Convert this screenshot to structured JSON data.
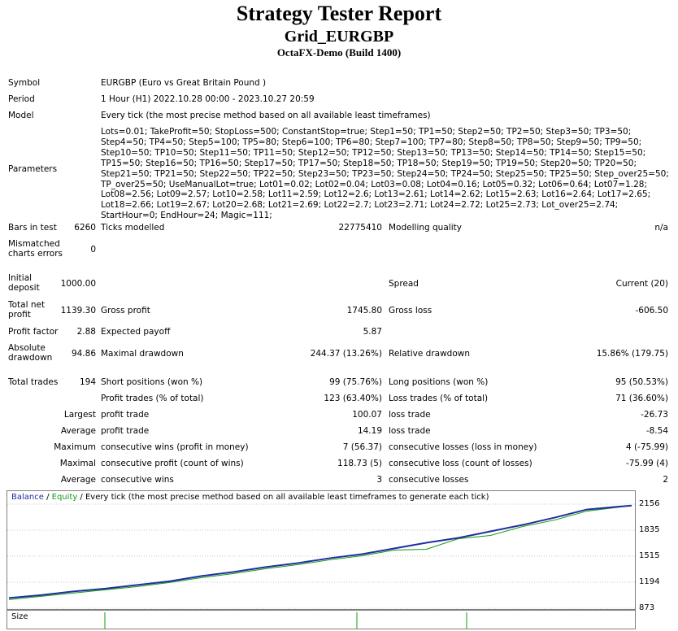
{
  "header": {
    "title": "Strategy Tester Report",
    "expert": "Grid_EURGBP",
    "server": "OctaFX-Demo (Build 1400)"
  },
  "info": {
    "symbol_label": "Symbol",
    "symbol_value": "EURGBP (Euro vs Great Britain Pound )",
    "period_label": "Period",
    "period_value": "1 Hour (H1) 2022.10.28 00:00 - 2023.10.27 20:59",
    "model_label": "Model",
    "model_value": "Every tick (the most precise method based on all available least timeframes)",
    "parameters_label": "Parameters",
    "parameters_value": "Lots=0.01; TakeProfit=50; StopLoss=500; ConstantStop=true; Step1=50; TP1=50; Step2=50; TP2=50; Step3=50; TP3=50; Step4=50; TP4=50; Step5=100; TP5=80; Step6=100; TP6=80; Step7=100; TP7=80; Step8=50; TP8=50; Step9=50; TP9=50; Step10=50; TP10=50; Step11=50; TP11=50; Step12=50; TP12=50; Step13=50; TP13=50; Step14=50; TP14=50; Step15=50; TP15=50; Step16=50; TP16=50; Step17=50; TP17=50; Step18=50; TP18=50; Step19=50; TP19=50; Step20=50; TP20=50; Step21=50; TP21=50; Step22=50; TP22=50; Step23=50; TP23=50; Step24=50; TP24=50; Step25=50; TP25=50; Step_over25=50; TP_over25=50; UseManualLot=true; Lot01=0.02; Lot02=0.04; Lot03=0.08; Lot04=0.16; Lot05=0.32; Lot06=0.64; Lot07=1.28; Lot08=2.56; Lot09=2.57; Lot10=2.58; Lot11=2.59; Lot12=2.6; Lot13=2.61; Lot14=2.62; Lot15=2.63; Lot16=2.64; Lot17=2.65; Lot18=2.66; Lot19=2.67; Lot20=2.68; Lot21=2.69; Lot22=2.7; Lot23=2.71; Lot24=2.72; Lot25=2.73; Lot_over25=2.74; StartHour=0; EndHour=24; Magic=111;"
  },
  "stats": {
    "bars_label": "Bars in test",
    "bars_value": "6260",
    "ticks_label": "Ticks modelled",
    "ticks_value": "22775410",
    "quality_label": "Modelling quality",
    "quality_value": "n/a",
    "mismatch_label": "Mismatched charts errors",
    "mismatch_value": "0",
    "deposit_label": "Initial deposit",
    "deposit_value": "1000.00",
    "spread_label": "Spread",
    "spread_value": "Current (20)",
    "net_label": "Total net profit",
    "net_value": "1139.30",
    "gross_profit_label": "Gross profit",
    "gross_profit_value": "1745.80",
    "gross_loss_label": "Gross loss",
    "gross_loss_value": "-606.50",
    "pf_label": "Profit factor",
    "pf_value": "2.88",
    "payoff_label": "Expected payoff",
    "payoff_value": "5.87",
    "abs_dd_label": "Absolute drawdown",
    "abs_dd_value": "94.86",
    "max_dd_label": "Maximal drawdown",
    "max_dd_value": "244.37 (13.26%)",
    "rel_dd_label": "Relative drawdown",
    "rel_dd_value": "15.86% (179.75)",
    "trades_label": "Total trades",
    "trades_value": "194",
    "short_label": "Short positions (won %)",
    "short_value": "99 (75.76%)",
    "long_label": "Long positions (won %)",
    "long_value": "95 (50.53%)",
    "ptrades_label": "Profit trades (% of total)",
    "ptrades_value": "123 (63.40%)",
    "ltrades_label": "Loss trades (% of total)",
    "ltrades_value": "71 (36.60%)",
    "largest_label": "Largest",
    "largest_profit_label": "profit trade",
    "largest_profit_value": "100.07",
    "largest_loss_label": "loss trade",
    "largest_loss_value": "-26.73",
    "average_label": "Average",
    "avg_profit_label": "profit trade",
    "avg_profit_value": "14.19",
    "avg_loss_label": "loss trade",
    "avg_loss_value": "-8.54",
    "maximum_label": "Maximum",
    "max_wins_label": "consecutive wins (profit in money)",
    "max_wins_value": "7 (56.37)",
    "max_losses_label": "consecutive losses (loss in money)",
    "max_losses_value": "4 (-75.99)",
    "maximal_label": "Maximal",
    "maximal_profit_label": "consecutive profit (count of wins)",
    "maximal_profit_value": "118.73 (5)",
    "maximal_loss_label": "consecutive loss (count of losses)",
    "maximal_loss_value": "-75.99 (4)",
    "average2_label": "Average",
    "avg_wins_label": "consecutive wins",
    "avg_wins_value": "3",
    "avg_losses_label": "consecutive losses",
    "avg_losses_value": "2"
  },
  "chart": {
    "legend_balance": "Balance",
    "legend_sep1": " / ",
    "legend_equity": "Equity",
    "legend_rest": " / Every tick (the most precise method based on all available least timeframes to generate each tick)",
    "size_label": "Size",
    "colors": {
      "balance": "#1f2f9e",
      "equity": "#119b11",
      "legend_blue": "#1f2f9e"
    }
  },
  "chart_data": {
    "type": "line",
    "y_ticks": [
      2156,
      1835,
      1515,
      1194,
      873
    ],
    "ylim": [
      873,
      2156
    ],
    "series": [
      {
        "name": "Balance",
        "x": [
          0,
          10,
          20,
          30,
          40,
          50,
          60,
          70,
          80,
          90,
          100,
          110,
          120,
          130,
          140,
          150,
          160,
          170,
          180,
          194
        ],
        "values": [
          1000,
          1035,
          1080,
          1115,
          1160,
          1205,
          1270,
          1320,
          1380,
          1430,
          1490,
          1540,
          1610,
          1680,
          1740,
          1820,
          1900,
          1990,
          2090,
          2139
        ]
      },
      {
        "name": "Equity",
        "x": [
          0,
          10,
          20,
          30,
          40,
          50,
          60,
          70,
          80,
          90,
          100,
          110,
          120,
          130,
          140,
          150,
          160,
          170,
          180,
          194
        ],
        "values": [
          980,
          1020,
          1060,
          1100,
          1140,
          1190,
          1250,
          1300,
          1360,
          1410,
          1470,
          1520,
          1590,
          1600,
          1730,
          1770,
          1880,
          1960,
          2070,
          2139
        ]
      }
    ]
  }
}
